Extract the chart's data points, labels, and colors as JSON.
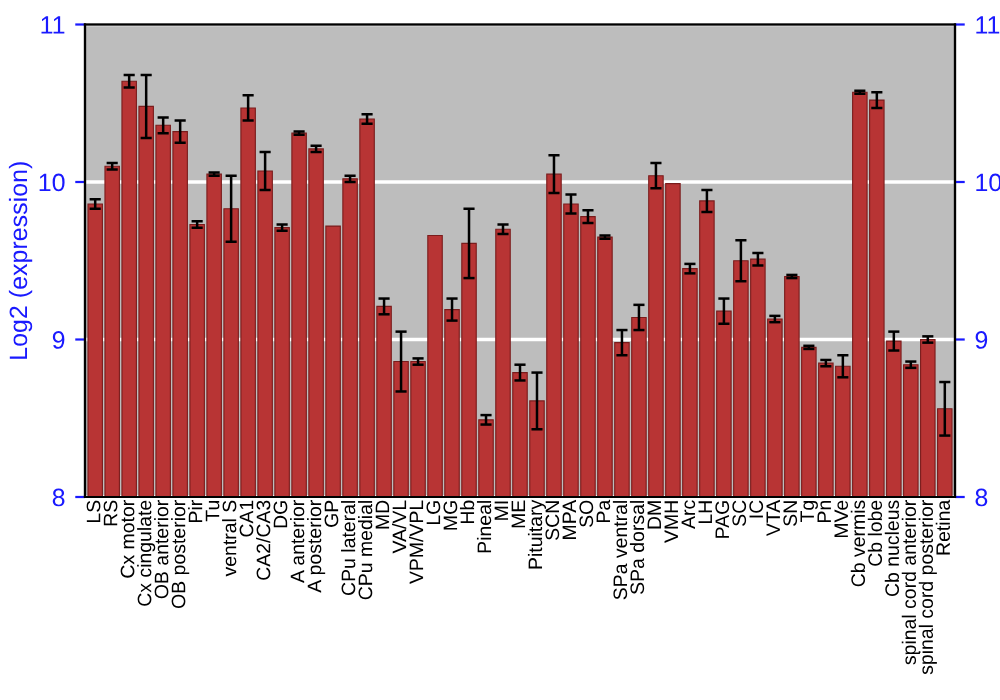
{
  "chart_data": {
    "type": "bar",
    "ylabel": "Log2 (expression)",
    "categories": [
      "LS",
      "RS",
      "Cx motor",
      "Cx cingulate",
      "OB anterior",
      "OB posterior",
      "Pir",
      "Tu",
      "ventral S",
      "CA1",
      "CA2/CA3",
      "DG",
      "A anterior",
      "A posterior",
      "GP",
      "CPu lateral",
      "CPu medial",
      "MD",
      "VA/VL",
      "VPM/VPL",
      "LG",
      "MG",
      "Hb",
      "Pineal",
      "MI",
      "ME",
      "Pituitary",
      "SCN",
      "MPA",
      "SO",
      "Pa",
      "SPa ventral",
      "SPa dorsal",
      "DM",
      "VMH",
      "Arc",
      "LH",
      "PAG",
      "SC",
      "IC",
      "VTA",
      "SN",
      "Tg",
      "Pn",
      "MVe",
      "Cb vermis",
      "Cb lobe",
      "Cb nucleus",
      "spinal cord anterior",
      "spinal cord posterior",
      "Retina"
    ],
    "values": [
      9.86,
      10.1,
      10.64,
      10.48,
      10.36,
      10.32,
      9.73,
      10.05,
      9.83,
      10.47,
      10.07,
      9.71,
      10.31,
      10.21,
      9.72,
      10.02,
      10.4,
      9.21,
      8.86,
      8.86,
      9.66,
      9.19,
      9.61,
      8.49,
      9.7,
      8.79,
      8.61,
      10.05,
      9.86,
      9.78,
      9.65,
      8.98,
      9.14,
      10.04,
      9.99,
      9.45,
      9.88,
      9.18,
      9.5,
      9.51,
      9.13,
      9.4,
      8.95,
      8.85,
      8.83,
      10.57,
      10.52,
      8.99,
      8.84,
      9.0,
      8.56
    ],
    "errors": [
      0.03,
      0.02,
      0.04,
      0.2,
      0.05,
      0.07,
      0.02,
      0.01,
      0.21,
      0.08,
      0.12,
      0.02,
      0.01,
      0.02,
      null,
      0.02,
      0.03,
      0.05,
      0.19,
      0.02,
      null,
      0.07,
      0.22,
      0.03,
      0.03,
      0.05,
      0.18,
      0.12,
      0.06,
      0.04,
      0.01,
      0.08,
      0.08,
      0.08,
      null,
      0.03,
      0.07,
      0.08,
      0.13,
      0.04,
      0.02,
      0.01,
      0.01,
      0.02,
      0.07,
      0.01,
      0.05,
      0.06,
      0.02,
      0.02,
      0.17
    ],
    "color": "#b83434",
    "ylim": [
      8,
      11
    ],
    "yticks": [
      8,
      9,
      10,
      11
    ],
    "y2lim": [
      8,
      11
    ],
    "y2ticks": [
      8,
      9,
      10,
      11
    ],
    "grid": "y"
  }
}
